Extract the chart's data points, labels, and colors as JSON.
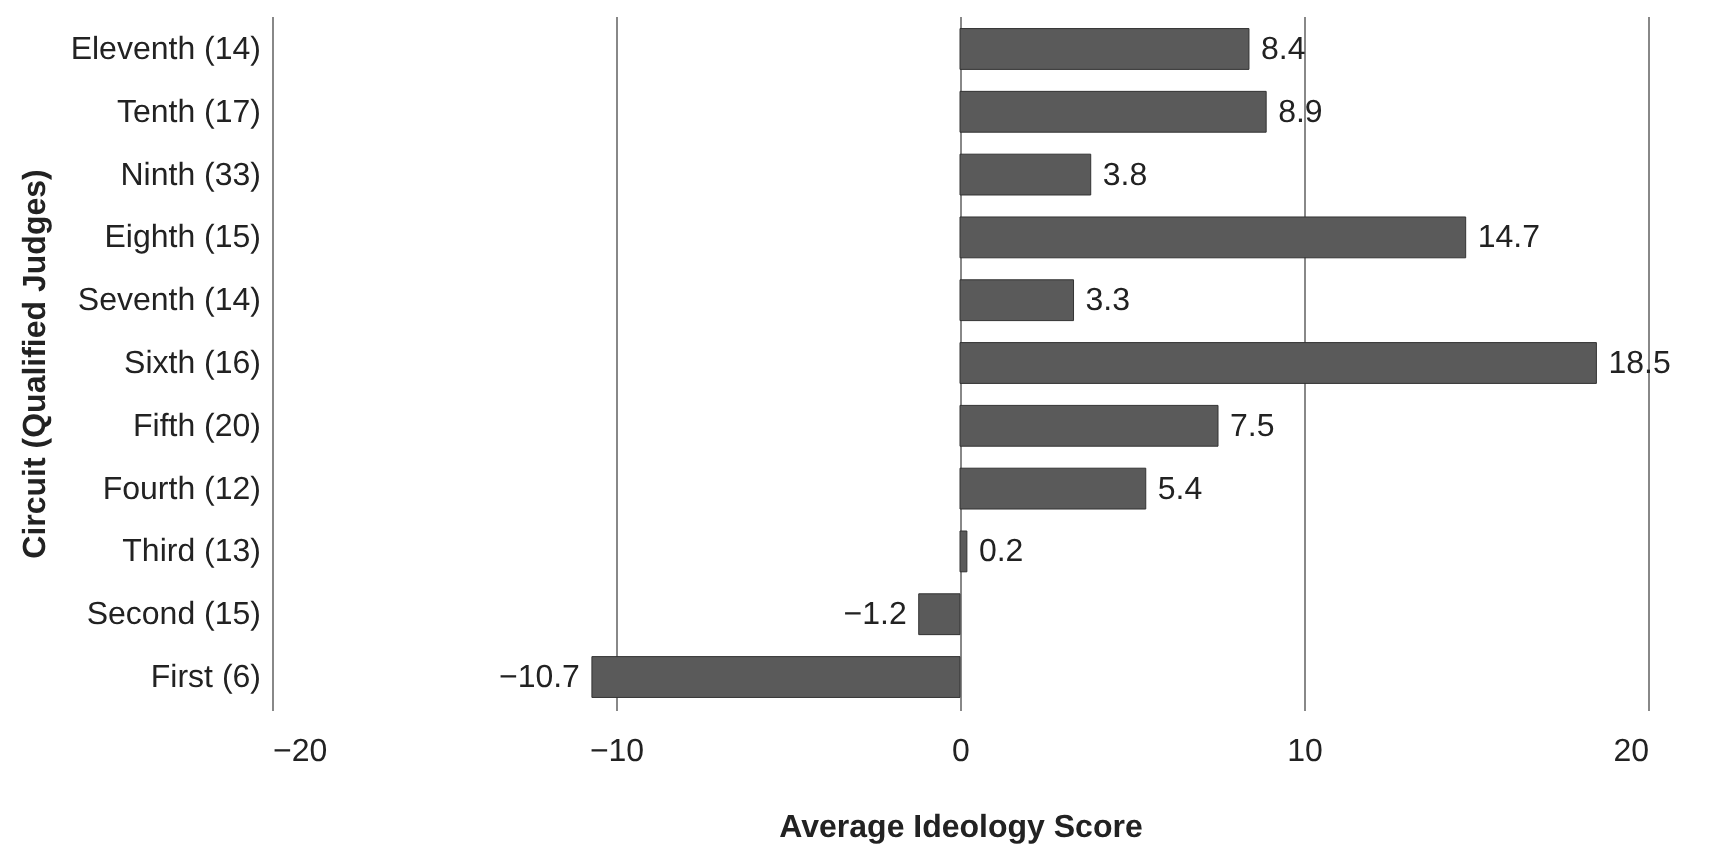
{
  "chart_data": {
    "type": "bar",
    "orientation": "horizontal",
    "xlabel": "Average Ideology Score",
    "ylabel": "Circuit (Qualified Judges)",
    "categories": [
      "Eleventh (14)",
      "Tenth (17)",
      "Ninth (33)",
      "Eighth (15)",
      "Seventh (14)",
      "Sixth (16)",
      "Fifth (20)",
      "Fourth (12)",
      "Third (13)",
      "Second (15)",
      "First (6)"
    ],
    "values": [
      8.4,
      8.9,
      3.8,
      14.7,
      3.3,
      18.5,
      7.5,
      5.4,
      0.2,
      -1.2,
      -10.7
    ],
    "color": "#5a5a5a",
    "xlim": [
      -20,
      20
    ],
    "xticks": [
      -20,
      -10,
      0,
      10,
      20
    ],
    "grid": "x",
    "data_labels": true
  }
}
